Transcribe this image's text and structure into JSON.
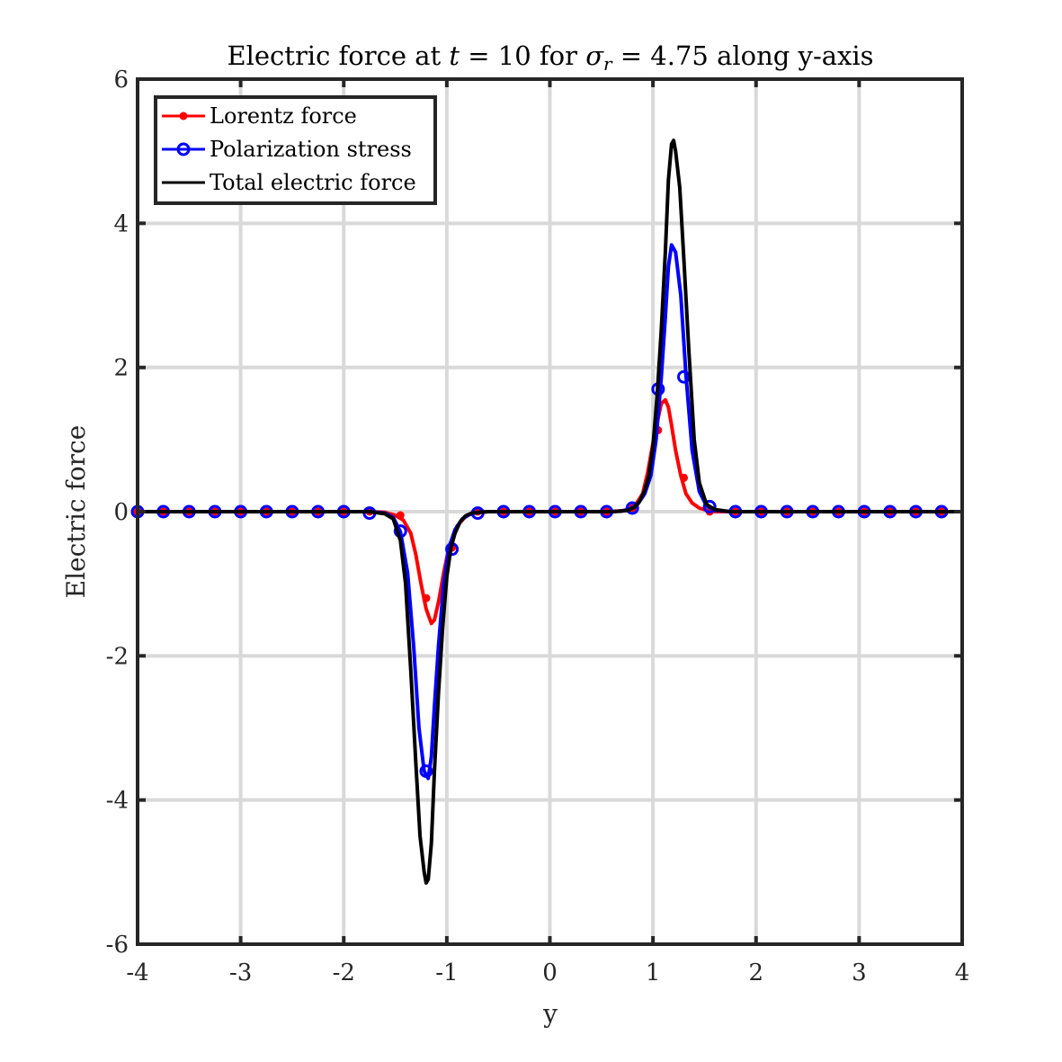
{
  "chart_data": {
    "type": "line",
    "title": "Electric force at t = 10 for σ_r = 4.75 along y-axis",
    "title_parts": {
      "lead": "Electric force at ",
      "t_var": "t",
      "eq1": " = 10 for ",
      "sigma": "σ",
      "sigma_sub": "r",
      "eq2": " = 4.75 along y-axis"
    },
    "xlabel": "y",
    "ylabel": "Electric force",
    "xlim": [
      -4,
      4
    ],
    "ylim": [
      -6,
      6
    ],
    "x_ticks": [
      -4,
      -3,
      -2,
      -1,
      0,
      1,
      2,
      3,
      4
    ],
    "x_tick_labels": [
      "-4",
      "-3",
      "-2",
      "-1",
      "0",
      "1",
      "2",
      "3",
      "4"
    ],
    "y_ticks": [
      -6,
      -4,
      -2,
      0,
      2,
      4,
      6
    ],
    "y_tick_labels": [
      "-6",
      "-4",
      "-2",
      "0",
      "2",
      "4",
      "6"
    ],
    "grid": true,
    "legend_position": "top-left",
    "series": [
      {
        "name": "Lorentz force",
        "color": "#ff0000",
        "marker": "dot",
        "curve": {
          "x": [
            -4,
            -1.75,
            -1.6,
            -1.5,
            -1.42,
            -1.35,
            -1.3,
            -1.25,
            -1.2,
            -1.15,
            -1.12,
            -1.08,
            -1.03,
            -0.98,
            -0.9,
            -0.82,
            -0.75,
            -0.6,
            0.6,
            0.75,
            0.82,
            0.9,
            0.95,
            1.0,
            1.05,
            1.08,
            1.12,
            1.15,
            1.18,
            1.22,
            1.27,
            1.32,
            1.38,
            1.45,
            1.52,
            1.6,
            1.75,
            4
          ],
          "y": [
            0,
            0,
            -0.01,
            -0.05,
            -0.12,
            -0.3,
            -0.6,
            -1.0,
            -1.35,
            -1.55,
            -1.5,
            -1.25,
            -0.85,
            -0.5,
            -0.2,
            -0.07,
            -0.02,
            0,
            0,
            0.02,
            0.07,
            0.25,
            0.55,
            0.95,
            1.3,
            1.5,
            1.55,
            1.45,
            1.2,
            0.85,
            0.5,
            0.25,
            0.12,
            0.05,
            0.02,
            0,
            0,
            0
          ]
        },
        "markers": {
          "x": [
            -4,
            -3.75,
            -3.5,
            -3.25,
            -3,
            -2.75,
            -2.5,
            -2.25,
            -2,
            -1.75,
            -1.45,
            -1.2,
            -0.95,
            -0.7,
            -0.45,
            -0.2,
            0.05,
            0.3,
            0.55,
            0.8,
            1.05,
            1.3,
            1.55,
            1.8,
            2.05,
            2.3,
            2.55,
            2.8,
            3.05,
            3.3,
            3.55,
            3.8
          ],
          "y": [
            0,
            0,
            0,
            0,
            0,
            0,
            0,
            0,
            0,
            0,
            -0.05,
            -1.2,
            -0.5,
            0,
            0,
            0,
            0,
            0,
            0,
            0.05,
            1.13,
            0.47,
            0,
            0,
            0,
            0,
            0,
            0,
            0,
            0,
            0,
            0
          ]
        }
      },
      {
        "name": "Polarization stress",
        "color": "#0000ff",
        "marker": "circle",
        "curve": {
          "x": [
            -4,
            -1.75,
            -1.6,
            -1.52,
            -1.45,
            -1.38,
            -1.32,
            -1.27,
            -1.22,
            -1.18,
            -1.15,
            -1.12,
            -1.08,
            -1.03,
            -0.98,
            -0.92,
            -0.85,
            -0.78,
            -0.7,
            -0.6,
            0.6,
            0.7,
            0.78,
            0.85,
            0.92,
            0.98,
            1.03,
            1.08,
            1.12,
            1.15,
            1.18,
            1.22,
            1.27,
            1.32,
            1.38,
            1.45,
            1.52,
            1.6,
            1.75,
            4
          ],
          "y": [
            0,
            0,
            -0.02,
            -0.08,
            -0.28,
            -0.85,
            -1.9,
            -3.0,
            -3.6,
            -3.7,
            -3.4,
            -2.7,
            -1.85,
            -1.0,
            -0.5,
            -0.25,
            -0.1,
            -0.04,
            -0.01,
            0,
            0,
            0.01,
            0.04,
            0.1,
            0.25,
            0.5,
            1.0,
            1.85,
            2.7,
            3.4,
            3.7,
            3.6,
            3.0,
            1.9,
            0.85,
            0.28,
            0.08,
            0.02,
            0,
            0
          ]
        },
        "markers": {
          "x": [
            -4,
            -3.75,
            -3.5,
            -3.25,
            -3,
            -2.75,
            -2.5,
            -2.25,
            -2,
            -1.75,
            -1.45,
            -1.2,
            -0.95,
            -0.7,
            -0.45,
            -0.2,
            0.05,
            0.3,
            0.55,
            0.8,
            1.05,
            1.3,
            1.55,
            1.8,
            2.05,
            2.3,
            2.55,
            2.8,
            3.05,
            3.3,
            3.55,
            3.8
          ],
          "y": [
            0,
            0,
            0,
            0,
            0,
            0,
            0,
            0,
            0,
            -0.02,
            -0.27,
            -3.6,
            -0.52,
            -0.02,
            0,
            0,
            0,
            0,
            0,
            0.05,
            1.7,
            1.87,
            0.07,
            0,
            0,
            0,
            0,
            0,
            0,
            0,
            0,
            0
          ]
        }
      },
      {
        "name": "Total electric force",
        "color": "#000000",
        "marker": "none",
        "curve": {
          "x": [
            -4,
            -1.75,
            -1.6,
            -1.52,
            -1.45,
            -1.4,
            -1.35,
            -1.3,
            -1.26,
            -1.22,
            -1.2,
            -1.18,
            -1.15,
            -1.12,
            -1.08,
            -1.04,
            -1.0,
            -0.96,
            -0.92,
            -0.87,
            -0.82,
            -0.76,
            -0.7,
            -0.6,
            0.6,
            0.7,
            0.76,
            0.82,
            0.87,
            0.92,
            0.96,
            1.0,
            1.04,
            1.08,
            1.12,
            1.15,
            1.18,
            1.2,
            1.22,
            1.26,
            1.3,
            1.35,
            1.4,
            1.45,
            1.52,
            1.6,
            1.75,
            4
          ],
          "y": [
            0,
            0,
            -0.03,
            -0.1,
            -0.4,
            -1.0,
            -2.2,
            -3.5,
            -4.5,
            -5.0,
            -5.15,
            -5.1,
            -4.6,
            -3.6,
            -2.5,
            -1.6,
            -0.9,
            -0.5,
            -0.3,
            -0.14,
            -0.06,
            -0.02,
            -0.01,
            0,
            0,
            0.01,
            0.02,
            0.06,
            0.14,
            0.3,
            0.5,
            0.9,
            1.6,
            2.5,
            3.6,
            4.6,
            5.1,
            5.15,
            5.0,
            4.5,
            3.5,
            2.2,
            1.0,
            0.4,
            0.1,
            0.03,
            0,
            0
          ]
        }
      }
    ]
  }
}
